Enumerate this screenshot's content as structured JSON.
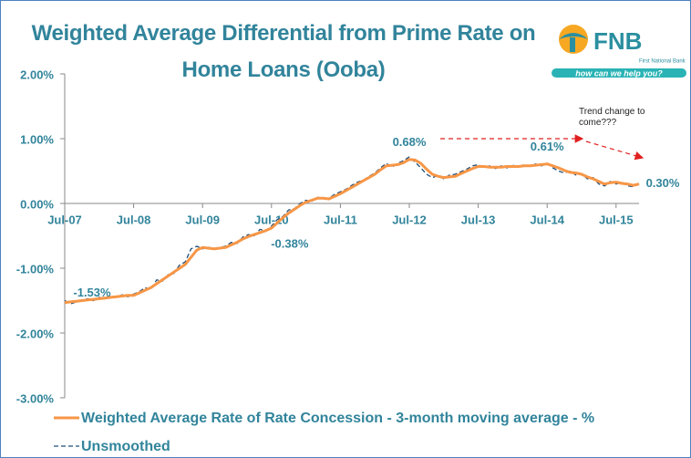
{
  "chart_data": {
    "type": "line",
    "title": "Weighted Average Differential from Prime Rate on Home Loans (Ooba)",
    "annotation": "Trend change to come???",
    "categories": [
      "Jul-07",
      null,
      null,
      null,
      null,
      null,
      null,
      null,
      null,
      null,
      null,
      null,
      "Jul-08",
      null,
      null,
      null,
      null,
      null,
      null,
      null,
      null,
      null,
      null,
      null,
      "Jul-09",
      null,
      null,
      null,
      null,
      null,
      null,
      null,
      null,
      null,
      null,
      null,
      "Jul-10",
      null,
      null,
      null,
      null,
      null,
      null,
      null,
      null,
      null,
      null,
      null,
      "Jul-11",
      null,
      null,
      null,
      null,
      null,
      null,
      null,
      null,
      null,
      null,
      null,
      "Jul-12",
      null,
      null,
      null,
      null,
      null,
      null,
      null,
      null,
      null,
      null,
      null,
      "Jul-13",
      null,
      null,
      null,
      null,
      null,
      null,
      null,
      null,
      null,
      null,
      null,
      "Jul-14",
      null,
      null,
      null,
      null,
      null,
      null,
      null,
      null,
      null,
      null,
      null,
      "Jul-15",
      null,
      null,
      null,
      null
    ],
    "series": [
      {
        "name": "Weighted Average Rate of Rate Concession - 3-month moving average - %",
        "color": "#f79646",
        "dashed": false,
        "values": [
          -1.53,
          -1.52,
          -1.51,
          -1.5,
          -1.49,
          -1.48,
          -1.47,
          -1.46,
          -1.45,
          -1.44,
          -1.43,
          -1.42,
          -1.42,
          -1.38,
          -1.34,
          -1.3,
          -1.24,
          -1.18,
          -1.12,
          -1.06,
          -1.0,
          -0.94,
          -0.83,
          -0.72,
          -0.68,
          -0.69,
          -0.7,
          -0.69,
          -0.68,
          -0.64,
          -0.6,
          -0.55,
          -0.51,
          -0.48,
          -0.45,
          -0.42,
          -0.38,
          -0.3,
          -0.22,
          -0.15,
          -0.09,
          -0.03,
          0.02,
          0.05,
          0.08,
          0.08,
          0.07,
          0.11,
          0.15,
          0.2,
          0.25,
          0.3,
          0.35,
          0.4,
          0.45,
          0.52,
          0.58,
          0.59,
          0.6,
          0.63,
          0.68,
          0.67,
          0.62,
          0.53,
          0.45,
          0.42,
          0.4,
          0.41,
          0.42,
          0.46,
          0.5,
          0.54,
          0.57,
          0.57,
          0.56,
          0.56,
          0.56,
          0.57,
          0.57,
          0.57,
          0.58,
          0.58,
          0.59,
          0.6,
          0.61,
          0.58,
          0.55,
          0.51,
          0.48,
          0.47,
          0.45,
          0.41,
          0.38,
          0.34,
          0.3,
          0.32,
          0.33,
          0.31,
          0.3,
          0.28,
          0.3
        ],
        "value_labels": [
          "-1.53%",
          null,
          null,
          null,
          null,
          null,
          null,
          null,
          null,
          null,
          null,
          null,
          null,
          null,
          null,
          null,
          null,
          null,
          null,
          null,
          null,
          null,
          null,
          null,
          null,
          null,
          null,
          null,
          null,
          null,
          null,
          null,
          null,
          null,
          null,
          null,
          "-0.38%",
          null,
          null,
          null,
          null,
          null,
          null,
          null,
          null,
          null,
          null,
          null,
          null,
          null,
          null,
          null,
          null,
          null,
          null,
          null,
          null,
          null,
          null,
          null,
          "0.68%",
          null,
          null,
          null,
          null,
          null,
          null,
          null,
          null,
          null,
          null,
          null,
          null,
          null,
          null,
          null,
          null,
          null,
          null,
          null,
          null,
          null,
          null,
          null,
          "0.61%",
          null,
          null,
          null,
          null,
          null,
          null,
          null,
          null,
          null,
          null,
          null,
          null,
          null,
          null,
          null,
          "0.30%"
        ]
      },
      {
        "name": "Unsmoothed",
        "color": "#1f4e79",
        "dashed": true,
        "values": [
          -1.5,
          -1.55,
          -1.52,
          -1.5,
          -1.47,
          -1.5,
          -1.45,
          -1.47,
          -1.43,
          -1.45,
          -1.41,
          -1.44,
          -1.4,
          -1.36,
          -1.3,
          -1.33,
          -1.18,
          -1.2,
          -1.1,
          -1.08,
          -0.95,
          -0.9,
          -0.7,
          -0.66,
          -0.7,
          -0.67,
          -0.72,
          -0.68,
          -0.66,
          -0.6,
          -0.62,
          -0.52,
          -0.48,
          -0.5,
          -0.4,
          -0.42,
          -0.35,
          -0.25,
          -0.2,
          -0.1,
          -0.08,
          0.0,
          0.05,
          0.03,
          0.1,
          0.06,
          0.08,
          0.14,
          0.18,
          0.22,
          0.28,
          0.33,
          0.36,
          0.42,
          0.47,
          0.55,
          0.62,
          0.56,
          0.62,
          0.66,
          0.72,
          0.64,
          0.55,
          0.45,
          0.4,
          0.43,
          0.38,
          0.44,
          0.45,
          0.49,
          0.53,
          0.58,
          0.6,
          0.55,
          0.58,
          0.54,
          0.58,
          0.55,
          0.59,
          0.56,
          0.6,
          0.57,
          0.61,
          0.58,
          0.62,
          0.55,
          0.5,
          0.47,
          0.5,
          0.44,
          0.46,
          0.38,
          0.4,
          0.3,
          0.27,
          0.34,
          0.3,
          0.33,
          0.27,
          0.26,
          0.3
        ]
      }
    ],
    "ylim": [
      -3,
      2
    ],
    "yticks": [
      {
        "value": 2,
        "label": "2.00%"
      },
      {
        "value": 1,
        "label": "1.00%"
      },
      {
        "value": 0,
        "label": "0.00%"
      },
      {
        "value": -1,
        "label": "-1.00%"
      },
      {
        "value": -2,
        "label": "-2.00%"
      },
      {
        "value": -3,
        "label": "-3.00%"
      }
    ],
    "grid": false,
    "legend": "bottom"
  },
  "logo": {
    "name": "FNB",
    "subtitle": "First National Bank",
    "tagline": "how can we help you?"
  }
}
